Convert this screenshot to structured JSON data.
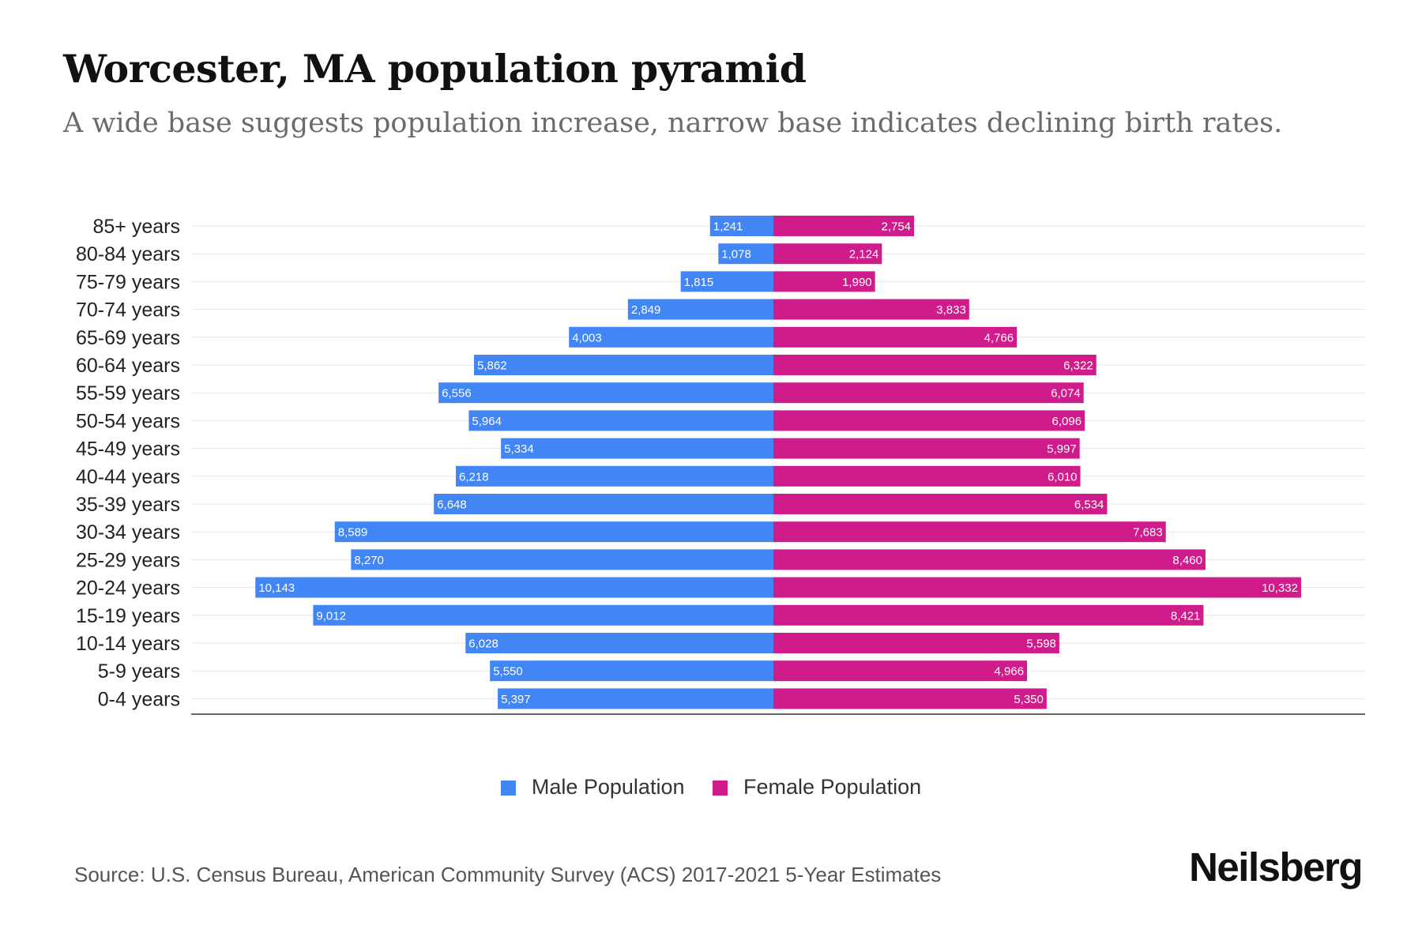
{
  "title": "Worcester, MA population pyramid",
  "subtitle": "A wide base suggests population increase, narrow base indicates declining birth rates.",
  "source": "Source: U.S. Census Bureau, American Community Survey (ACS) 2017-2021 5-Year Estimates",
  "brand": "Neilsberg",
  "colors": {
    "male": "#4285f4",
    "female": "#d01c8b"
  },
  "chart_data": {
    "type": "bar",
    "orientation": "horizontal",
    "layout": "population-pyramid",
    "categories": [
      "85+ years",
      "80-84 years",
      "75-79 years",
      "70-74 years",
      "65-69 years",
      "60-64 years",
      "55-59 years",
      "50-54 years",
      "45-49 years",
      "40-44 years",
      "35-39 years",
      "30-34 years",
      "25-29 years",
      "20-24 years",
      "15-19 years",
      "10-14 years",
      "5-9 years",
      "0-4 years"
    ],
    "series": [
      {
        "name": "Male Population",
        "color": "#4285f4",
        "side": "left",
        "values": [
          1241,
          1078,
          1815,
          2849,
          4003,
          5862,
          6556,
          5964,
          5334,
          6218,
          6648,
          8589,
          8270,
          10143,
          9012,
          6028,
          5550,
          5397
        ]
      },
      {
        "name": "Female Population",
        "color": "#d01c8b",
        "side": "right",
        "values": [
          2754,
          2124,
          1990,
          3833,
          4766,
          6322,
          6074,
          6096,
          5997,
          6010,
          6534,
          7683,
          8460,
          10332,
          8421,
          5598,
          4966,
          5350
        ]
      }
    ],
    "value_labels": {
      "male": [
        "1,241",
        "1,078",
        "1,815",
        "2,849",
        "4,003",
        "5,862",
        "6,556",
        "5,964",
        "5,334",
        "6,218",
        "6,648",
        "8,589",
        "8,270",
        "10,143",
        "9,012",
        "6,028",
        "5,550",
        "5,397"
      ],
      "female": [
        "2,754",
        "2,124",
        "1,990",
        "3,833",
        "4,766",
        "6,322",
        "6,074",
        "6,096",
        "5,997",
        "6,010",
        "6,534",
        "7,683",
        "8,460",
        "10,332",
        "8,421",
        "5,598",
        "4,966",
        "5,350"
      ]
    },
    "xlim": [
      -11400,
      11400
    ],
    "grid": true,
    "legend_position": "bottom"
  }
}
